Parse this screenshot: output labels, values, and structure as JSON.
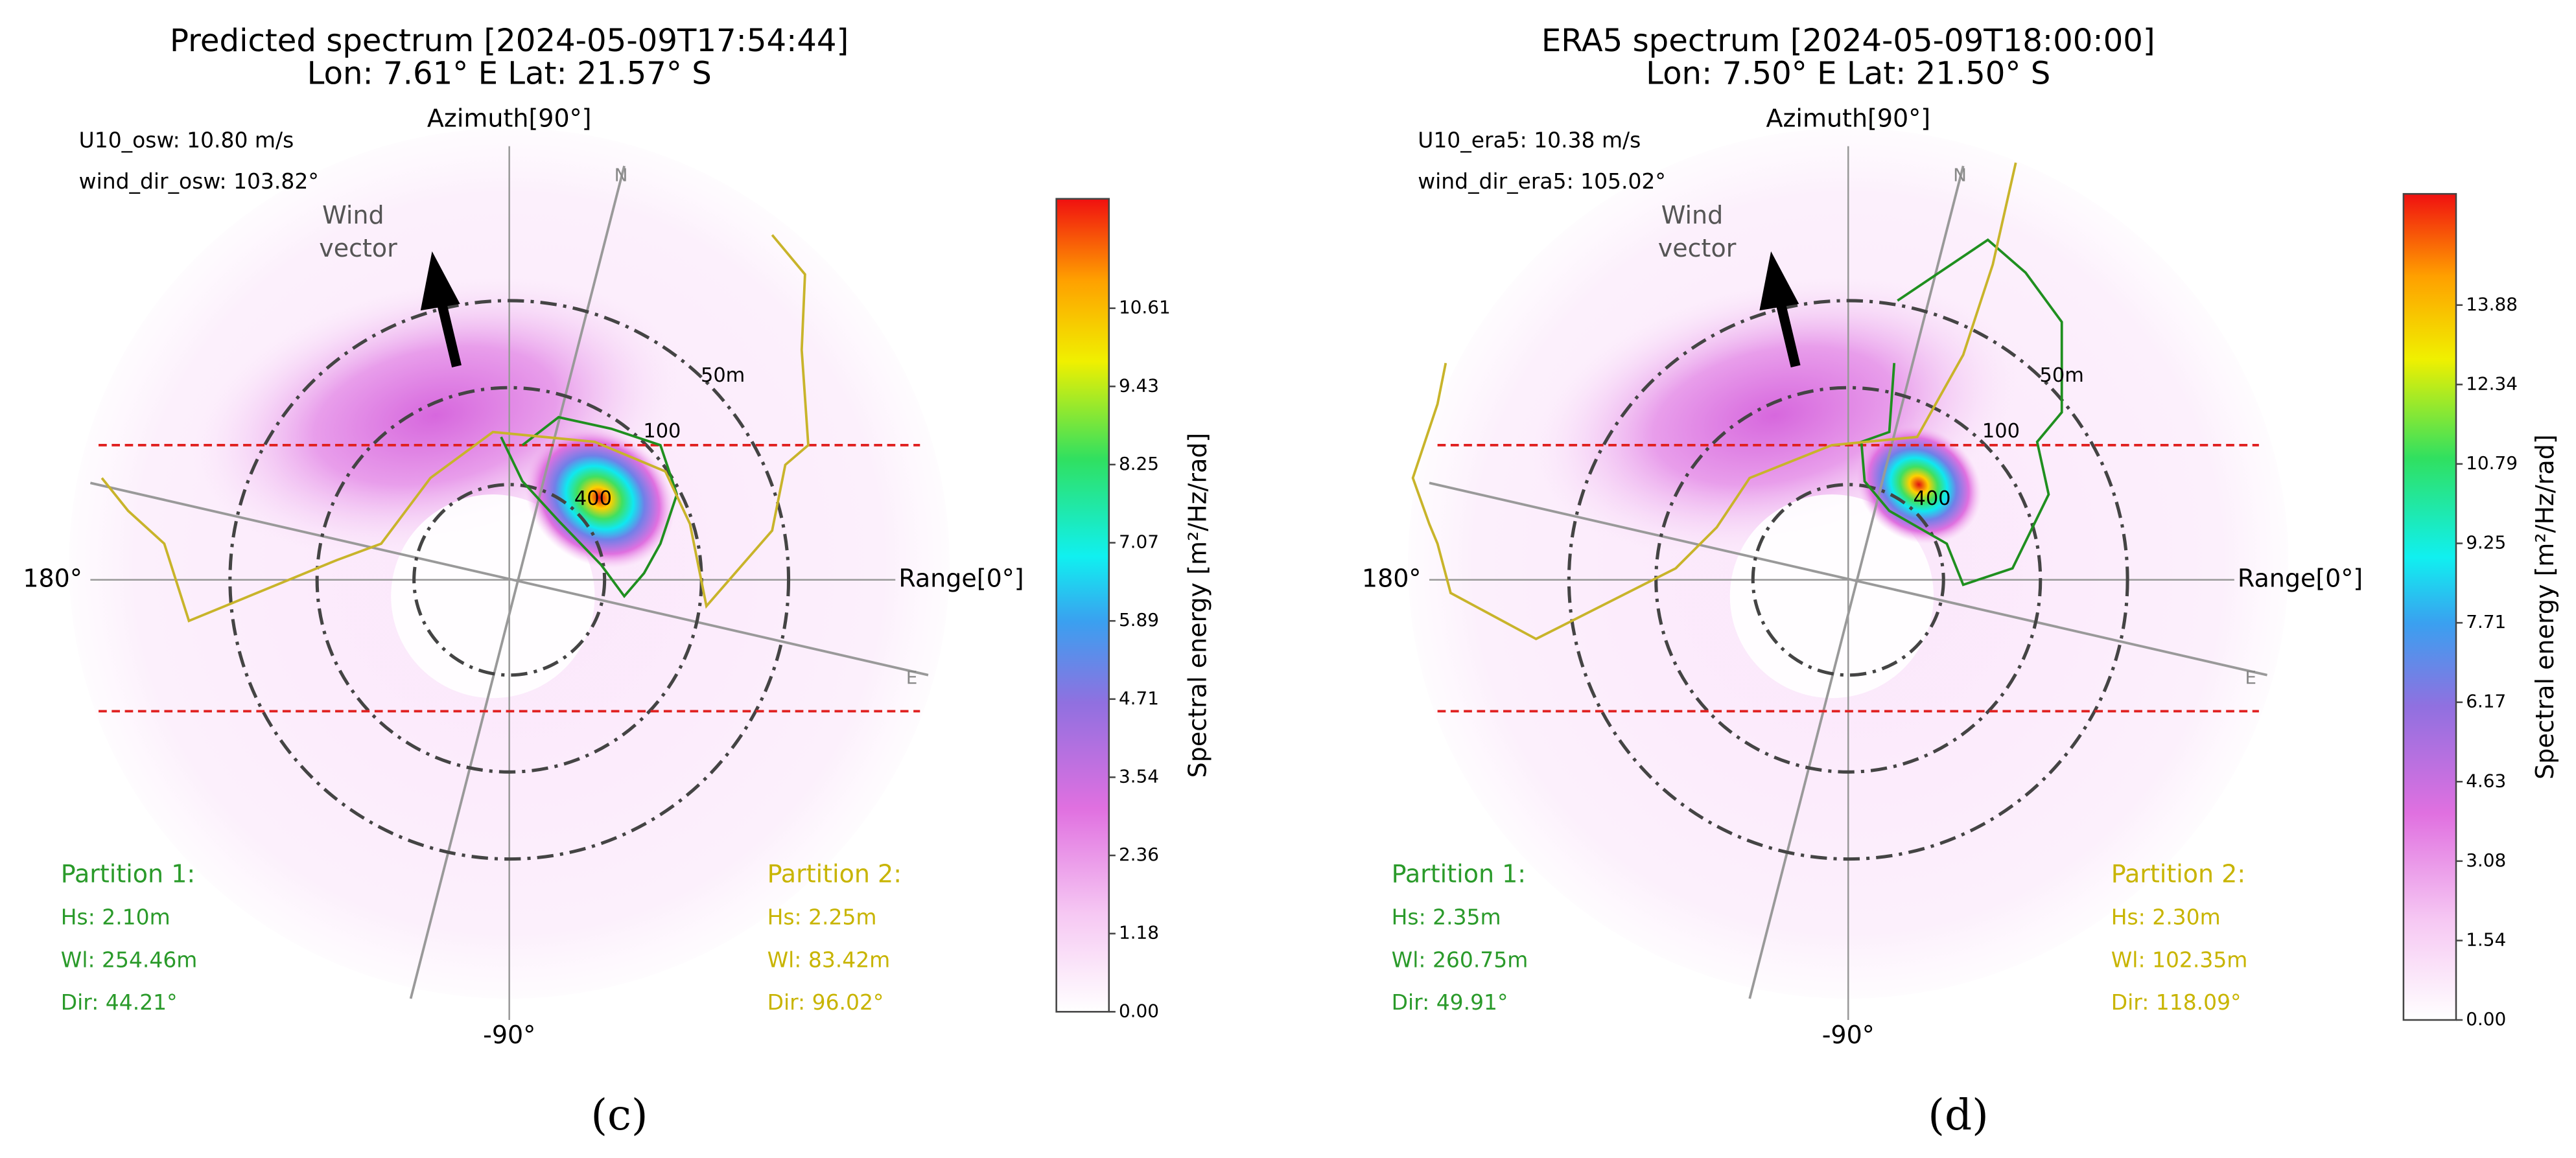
{
  "panels": [
    {
      "title": "Predicted spectrum [2024-05-09T17:54:44]",
      "subtitle": "Lon: 7.61° E Lat: 21.57° S",
      "azimuth_label": "Azimuth[90°]",
      "range_label": "Range[0°]",
      "left_label": "180°",
      "bottom_label": "-90°",
      "north_label": "N",
      "east_label": "E",
      "ring_labels": [
        "50m",
        "100",
        "400"
      ],
      "wind_label": [
        "Wind",
        "vector"
      ],
      "wind_info": [
        "U10_osw: 10.80 m/s",
        "wind_dir_osw: 103.82°"
      ],
      "partition_1": {
        "title": "Partition 1:",
        "lines": [
          "Hs: 2.10m",
          "Wl: 254.46m",
          "Dir: 44.21°"
        ]
      },
      "partition_2": {
        "title": "Partition 2:",
        "lines": [
          "Hs: 2.25m",
          "Wl: 83.42m",
          "Dir: 96.02°"
        ]
      },
      "colorbar_label": "Spectral energy [m²/Hz/rad]",
      "colorbar_ticks": [
        "0.00",
        "1.18",
        "2.36",
        "3.54",
        "4.71",
        "5.89",
        "7.07",
        "8.25",
        "9.43",
        "10.61"
      ],
      "caption": "(c)"
    },
    {
      "title": "ERA5 spectrum [2024-05-09T18:00:00]",
      "subtitle": "Lon: 7.50° E Lat: 21.50° S",
      "azimuth_label": "Azimuth[90°]",
      "range_label": "Range[0°]",
      "left_label": "180°",
      "bottom_label": "-90°",
      "north_label": "N",
      "east_label": "E",
      "ring_labels": [
        "50m",
        "100",
        "400"
      ],
      "wind_label": [
        "Wind",
        "vector"
      ],
      "wind_info": [
        "U10_era5: 10.38 m/s",
        "wind_dir_era5: 105.02°"
      ],
      "partition_1": {
        "title": "Partition 1:",
        "lines": [
          "Hs: 2.35m",
          "Wl: 260.75m",
          "Dir: 49.91°"
        ]
      },
      "partition_2": {
        "title": "Partition 2:",
        "lines": [
          "Hs: 2.30m",
          "Wl: 102.35m",
          "Dir: 118.09°"
        ]
      },
      "colorbar_label": "Spectral energy [m²/Hz/rad]",
      "colorbar_ticks": [
        "0.00",
        "1.54",
        "3.08",
        "4.63",
        "6.17",
        "7.71",
        "9.25",
        "10.79",
        "12.34",
        "13.88"
      ],
      "caption": "(d)"
    }
  ]
}
